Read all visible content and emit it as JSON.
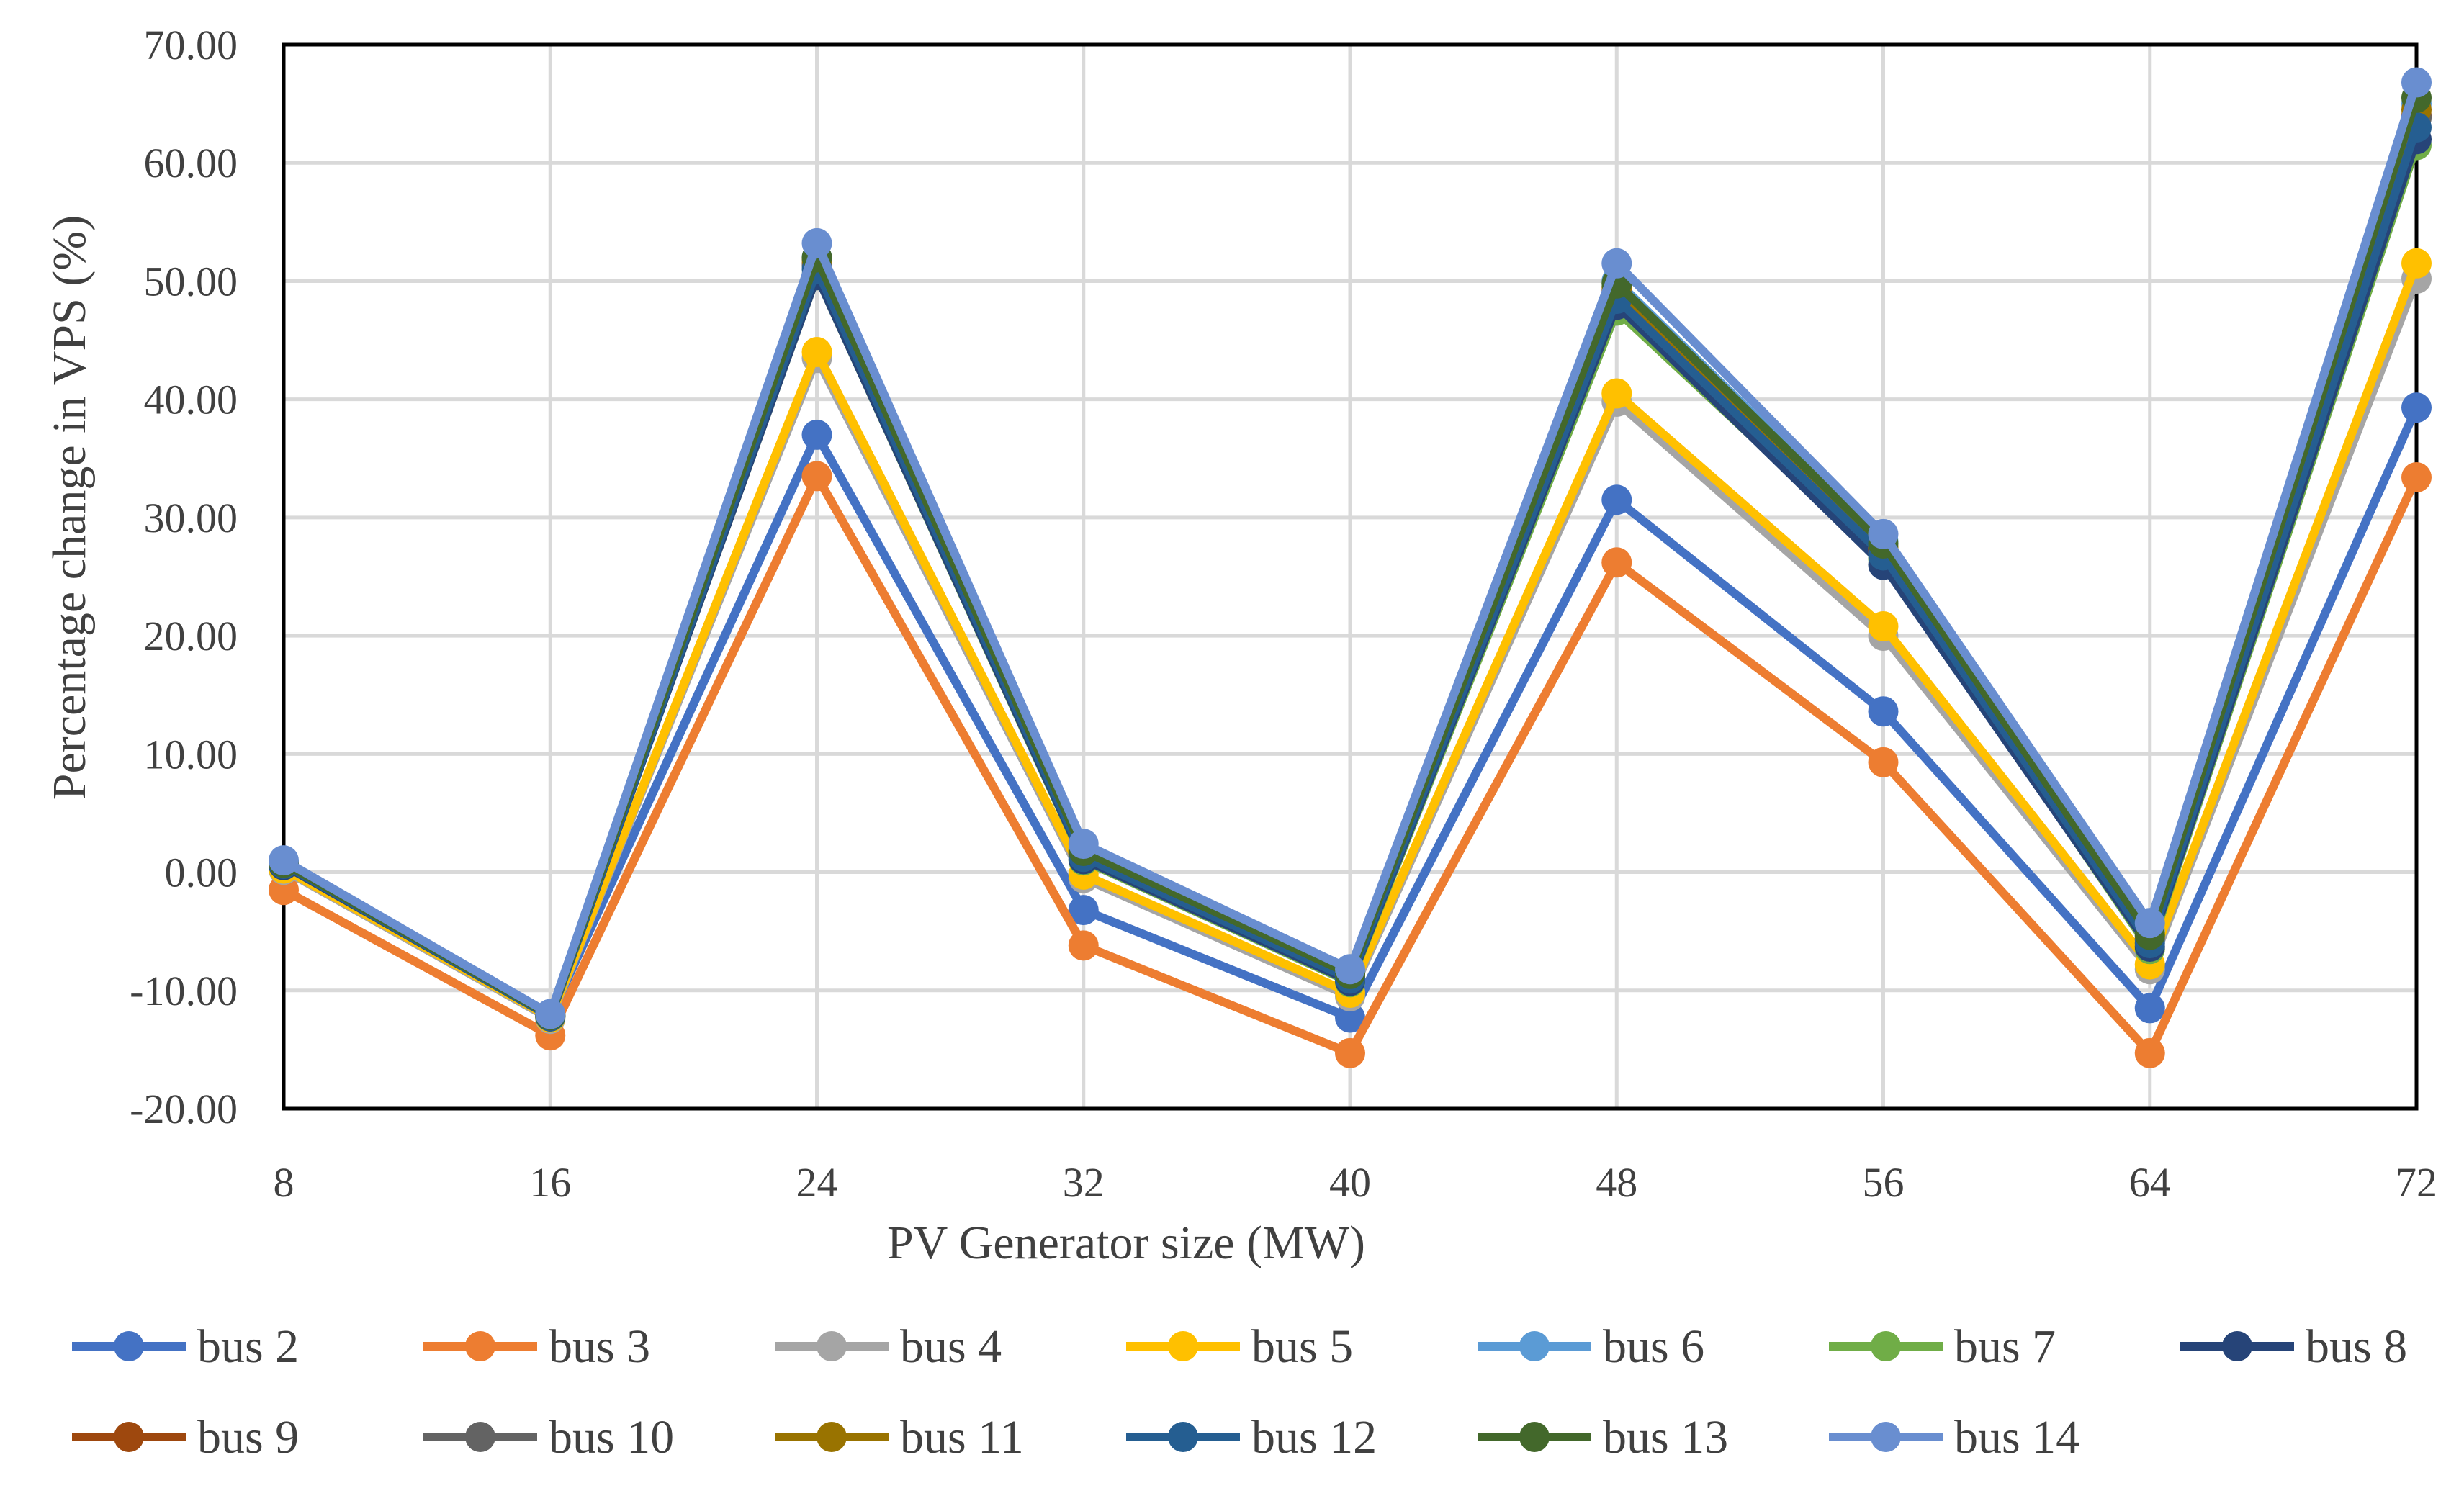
{
  "chart_data": {
    "type": "line",
    "title": "",
    "xlabel": "PV Generator size (MW)",
    "ylabel": "Percentage change in VPS (%)",
    "categories": [
      "8",
      "16",
      "24",
      "32",
      "40",
      "48",
      "56",
      "64",
      "72"
    ],
    "ylim": [
      -20,
      70
    ],
    "yticks": [
      "70.00",
      "60.00",
      "50.00",
      "40.00",
      "30.00",
      "20.00",
      "10.00",
      "0.00",
      "-10.00",
      "-20.00"
    ],
    "grid": true,
    "legend_position": "bottom",
    "series": [
      {
        "name": "bus 2",
        "color": "#4472C4",
        "values": [
          0.8,
          -12.2,
          37.0,
          -3.2,
          -12.3,
          31.5,
          13.6,
          -11.5,
          39.3
        ]
      },
      {
        "name": "bus 3",
        "color": "#ED7D31",
        "values": [
          -1.5,
          -13.8,
          33.5,
          -6.2,
          -15.3,
          26.2,
          9.3,
          -15.3,
          33.4
        ]
      },
      {
        "name": "bus 4",
        "color": "#A5A5A5",
        "values": [
          0.2,
          -12.4,
          43.5,
          -0.5,
          -10.5,
          39.8,
          20.0,
          -8.2,
          50.2
        ]
      },
      {
        "name": "bus 5",
        "color": "#FFC000",
        "values": [
          0.3,
          -12.3,
          44.0,
          -0.2,
          -10.2,
          40.5,
          20.8,
          -7.8,
          51.5
        ]
      },
      {
        "name": "bus 6",
        "color": "#5B9BD5",
        "values": [
          0.9,
          -12.0,
          52.0,
          2.0,
          -8.5,
          50.0,
          28.0,
          -5.0,
          65.0
        ]
      },
      {
        "name": "bus 7",
        "color": "#70AD47",
        "values": [
          0.6,
          -12.2,
          50.5,
          1.0,
          -9.3,
          47.5,
          26.5,
          -6.5,
          61.5
        ]
      },
      {
        "name": "bus 8",
        "color": "#264478",
        "values": [
          0.6,
          -12.2,
          50.5,
          1.1,
          -9.2,
          48.0,
          26.0,
          -6.3,
          62.0
        ]
      },
      {
        "name": "bus 9",
        "color": "#9E480E",
        "values": [
          0.8,
          -12.1,
          51.5,
          1.6,
          -8.8,
          49.2,
          27.3,
          -5.6,
          64.0
        ]
      },
      {
        "name": "bus 10",
        "color": "#636363",
        "values": [
          0.8,
          -12.1,
          51.3,
          1.5,
          -8.9,
          49.0,
          27.0,
          -5.7,
          63.8
        ]
      },
      {
        "name": "bus 11",
        "color": "#997300",
        "values": [
          0.8,
          -12.1,
          51.8,
          1.7,
          -8.7,
          49.5,
          27.5,
          -5.4,
          64.5
        ]
      },
      {
        "name": "bus 12",
        "color": "#255E91",
        "values": [
          0.7,
          -12.2,
          51.0,
          1.3,
          -9.0,
          48.5,
          26.8,
          -6.0,
          63.0
        ]
      },
      {
        "name": "bus 13",
        "color": "#43682B",
        "values": [
          0.8,
          -12.1,
          52.0,
          1.8,
          -8.6,
          49.8,
          27.8,
          -5.3,
          65.5
        ]
      },
      {
        "name": "bus 14",
        "color": "#698ED0",
        "values": [
          1.0,
          -12.0,
          53.2,
          2.4,
          -8.2,
          51.5,
          28.6,
          -4.3,
          66.8
        ]
      }
    ]
  }
}
